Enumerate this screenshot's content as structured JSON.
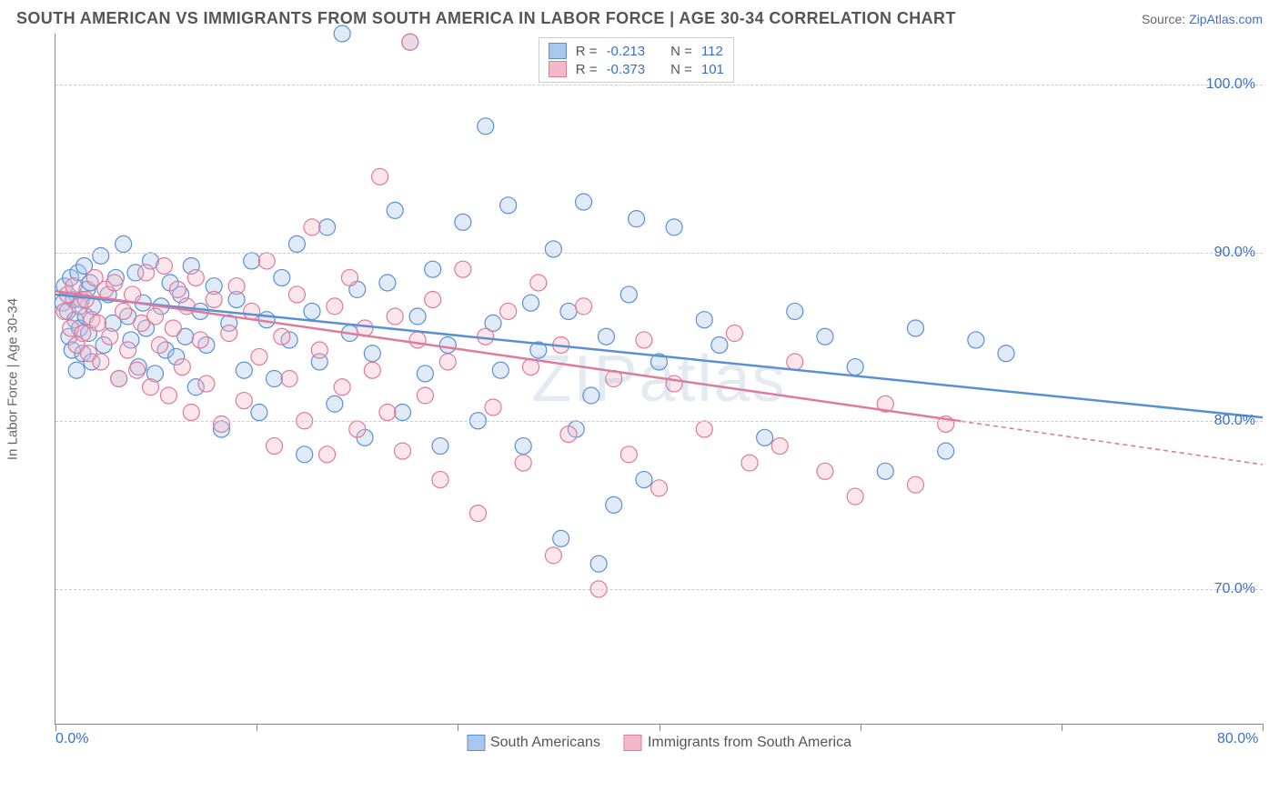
{
  "header": {
    "title": "SOUTH AMERICAN VS IMMIGRANTS FROM SOUTH AMERICA IN LABOR FORCE | AGE 30-34 CORRELATION CHART",
    "source_label": "Source: ",
    "source_value": "ZipAtlas.com"
  },
  "chart": {
    "type": "scatter",
    "y_axis_label": "In Labor Force | Age 30-34",
    "watermark": "ZIPatlas",
    "xlim": [
      0,
      80
    ],
    "ylim": [
      62,
      103
    ],
    "x_ticks": [
      0,
      13.33,
      26.66,
      40,
      53.33,
      66.66,
      80
    ],
    "x_tick_labels": {
      "0": "0.0%",
      "80": "80.0%"
    },
    "y_gridlines": [
      70,
      80,
      90,
      100
    ],
    "y_tick_labels": {
      "70": "70.0%",
      "80": "80.0%",
      "90": "90.0%",
      "100": "100.0%"
    },
    "x_tick_visible_labels": [
      0,
      80
    ],
    "grid_color": "#cccccc",
    "axis_color": "#888888",
    "background_color": "#ffffff",
    "marker_radius": 9,
    "marker_fill_opacity": 0.35,
    "trend_line_width": 2.5,
    "series": [
      {
        "id": "south_americans",
        "label": "South Americans",
        "fill": "#a9c6ec",
        "stroke": "#5a8fd6",
        "legend_fill": "#a9c6ec",
        "legend_stroke": "#5a8fd6",
        "R_label": "R = ",
        "R": "-0.213",
        "N_label": "N = ",
        "N": "112",
        "trend": {
          "x1": 0,
          "y1": 87.5,
          "x2": 80,
          "y2": 80.2,
          "solid_to_x": 80
        },
        "points": [
          [
            0.5,
            87
          ],
          [
            0.6,
            88
          ],
          [
            0.8,
            86.5
          ],
          [
            0.9,
            85
          ],
          [
            1.0,
            88.5
          ],
          [
            1.1,
            84.2
          ],
          [
            1.2,
            87.2
          ],
          [
            1.3,
            86
          ],
          [
            1.4,
            83
          ],
          [
            1.5,
            88.8
          ],
          [
            1.6,
            85.5
          ],
          [
            1.7,
            87.2
          ],
          [
            1.8,
            84
          ],
          [
            1.9,
            89.2
          ],
          [
            2.0,
            86.2
          ],
          [
            2.1,
            87.8
          ],
          [
            2.2,
            85.2
          ],
          [
            2.3,
            88.2
          ],
          [
            2.4,
            83.5
          ],
          [
            2.5,
            86.8
          ],
          [
            3,
            89.8
          ],
          [
            3.2,
            84.5
          ],
          [
            3.5,
            87.5
          ],
          [
            3.8,
            85.8
          ],
          [
            4,
            88.5
          ],
          [
            4.2,
            82.5
          ],
          [
            4.5,
            90.5
          ],
          [
            4.8,
            86.2
          ],
          [
            5,
            84.8
          ],
          [
            5.3,
            88.8
          ],
          [
            5.5,
            83.2
          ],
          [
            5.8,
            87
          ],
          [
            6,
            85.5
          ],
          [
            6.3,
            89.5
          ],
          [
            6.6,
            82.8
          ],
          [
            7,
            86.8
          ],
          [
            7.3,
            84.2
          ],
          [
            7.6,
            88.2
          ],
          [
            8,
            83.8
          ],
          [
            8.3,
            87.5
          ],
          [
            8.6,
            85
          ],
          [
            9,
            89.2
          ],
          [
            9.3,
            82
          ],
          [
            9.6,
            86.5
          ],
          [
            10,
            84.5
          ],
          [
            10.5,
            88
          ],
          [
            11,
            79.5
          ],
          [
            11.5,
            85.8
          ],
          [
            12,
            87.2
          ],
          [
            12.5,
            83
          ],
          [
            13,
            89.5
          ],
          [
            13.5,
            80.5
          ],
          [
            14,
            86
          ],
          [
            14.5,
            82.5
          ],
          [
            15,
            88.5
          ],
          [
            15.5,
            84.8
          ],
          [
            16,
            90.5
          ],
          [
            16.5,
            78
          ],
          [
            17,
            86.5
          ],
          [
            17.5,
            83.5
          ],
          [
            18,
            91.5
          ],
          [
            18.5,
            81
          ],
          [
            19,
            103
          ],
          [
            19.5,
            85.2
          ],
          [
            20,
            87.8
          ],
          [
            20.5,
            79
          ],
          [
            21,
            84
          ],
          [
            22,
            88.2
          ],
          [
            22.5,
            92.5
          ],
          [
            23,
            80.5
          ],
          [
            23.5,
            102.5
          ],
          [
            24,
            86.2
          ],
          [
            24.5,
            82.8
          ],
          [
            25,
            89
          ],
          [
            25.5,
            78.5
          ],
          [
            26,
            84.5
          ],
          [
            27,
            91.8
          ],
          [
            28,
            80
          ],
          [
            28.5,
            97.5
          ],
          [
            29,
            85.8
          ],
          [
            29.5,
            83
          ],
          [
            30,
            92.8
          ],
          [
            31,
            78.5
          ],
          [
            31.5,
            87
          ],
          [
            32,
            84.2
          ],
          [
            33,
            90.2
          ],
          [
            33.5,
            73
          ],
          [
            34,
            86.5
          ],
          [
            34.5,
            79.5
          ],
          [
            35,
            93
          ],
          [
            35.5,
            81.5
          ],
          [
            36,
            71.5
          ],
          [
            36.5,
            85
          ],
          [
            37,
            75
          ],
          [
            38,
            87.5
          ],
          [
            38.5,
            92
          ],
          [
            39,
            76.5
          ],
          [
            40,
            83.5
          ],
          [
            41,
            91.5
          ],
          [
            43,
            86
          ],
          [
            44,
            84.5
          ],
          [
            47,
            79
          ],
          [
            49,
            86.5
          ],
          [
            51,
            85
          ],
          [
            53,
            83.2
          ],
          [
            55,
            77
          ],
          [
            57,
            85.5
          ],
          [
            59,
            78.2
          ],
          [
            61,
            84.8
          ],
          [
            63,
            84
          ]
        ]
      },
      {
        "id": "immigrants",
        "label": "Immigrants from South America",
        "fill": "#f5b8c8",
        "stroke": "#e07a98",
        "legend_fill": "#f5b8c8",
        "legend_stroke": "#e07a98",
        "R_label": "R = ",
        "R": "-0.373",
        "N_label": "N = ",
        "N": "101",
        "trend": {
          "x1": 0,
          "y1": 87.7,
          "x2": 80,
          "y2": 77.4,
          "solid_to_x": 60
        },
        "points": [
          [
            0.6,
            86.5
          ],
          [
            0.8,
            87.5
          ],
          [
            1.0,
            85.5
          ],
          [
            1.2,
            88
          ],
          [
            1.4,
            84.5
          ],
          [
            1.6,
            86.8
          ],
          [
            1.8,
            85.2
          ],
          [
            2.0,
            87.2
          ],
          [
            2.2,
            84
          ],
          [
            2.4,
            86
          ],
          [
            2.6,
            88.5
          ],
          [
            2.8,
            85.8
          ],
          [
            3.0,
            83.5
          ],
          [
            3.3,
            87.8
          ],
          [
            3.6,
            85
          ],
          [
            3.9,
            88.2
          ],
          [
            4.2,
            82.5
          ],
          [
            4.5,
            86.5
          ],
          [
            4.8,
            84.2
          ],
          [
            5.1,
            87.5
          ],
          [
            5.4,
            83
          ],
          [
            5.7,
            85.8
          ],
          [
            6.0,
            88.8
          ],
          [
            6.3,
            82
          ],
          [
            6.6,
            86.2
          ],
          [
            6.9,
            84.5
          ],
          [
            7.2,
            89.2
          ],
          [
            7.5,
            81.5
          ],
          [
            7.8,
            85.5
          ],
          [
            8.1,
            87.8
          ],
          [
            8.4,
            83.2
          ],
          [
            8.7,
            86.8
          ],
          [
            9.0,
            80.5
          ],
          [
            9.3,
            88.5
          ],
          [
            9.6,
            84.8
          ],
          [
            10,
            82.2
          ],
          [
            10.5,
            87.2
          ],
          [
            11,
            79.8
          ],
          [
            11.5,
            85.2
          ],
          [
            12,
            88
          ],
          [
            12.5,
            81.2
          ],
          [
            13,
            86.5
          ],
          [
            13.5,
            83.8
          ],
          [
            14,
            89.5
          ],
          [
            14.5,
            78.5
          ],
          [
            15,
            85
          ],
          [
            15.5,
            82.5
          ],
          [
            16,
            87.5
          ],
          [
            16.5,
            80
          ],
          [
            17,
            91.5
          ],
          [
            17.5,
            84.2
          ],
          [
            18,
            78
          ],
          [
            18.5,
            86.8
          ],
          [
            19,
            82
          ],
          [
            19.5,
            88.5
          ],
          [
            20,
            79.5
          ],
          [
            20.5,
            85.5
          ],
          [
            21,
            83
          ],
          [
            21.5,
            94.5
          ],
          [
            22,
            80.5
          ],
          [
            22.5,
            86.2
          ],
          [
            23,
            78.2
          ],
          [
            23.5,
            102.5
          ],
          [
            24,
            84.8
          ],
          [
            24.5,
            81.5
          ],
          [
            25,
            87.2
          ],
          [
            25.5,
            76.5
          ],
          [
            26,
            83.5
          ],
          [
            27,
            89
          ],
          [
            28,
            74.5
          ],
          [
            28.5,
            85
          ],
          [
            29,
            80.8
          ],
          [
            30,
            86.5
          ],
          [
            31,
            77.5
          ],
          [
            31.5,
            83.2
          ],
          [
            32,
            88.2
          ],
          [
            33,
            72
          ],
          [
            33.5,
            84.5
          ],
          [
            34,
            79.2
          ],
          [
            35,
            86.8
          ],
          [
            36,
            70
          ],
          [
            37,
            82.5
          ],
          [
            38,
            78
          ],
          [
            39,
            84.8
          ],
          [
            40,
            76
          ],
          [
            41,
            82.2
          ],
          [
            43,
            79.5
          ],
          [
            45,
            85.2
          ],
          [
            46,
            77.5
          ],
          [
            48,
            78.5
          ],
          [
            49,
            83.5
          ],
          [
            51,
            77
          ],
          [
            53,
            75.5
          ],
          [
            55,
            81
          ],
          [
            57,
            76.2
          ],
          [
            59,
            79.8
          ]
        ]
      }
    ],
    "legend_bottom": [
      {
        "label": "South Americans",
        "fill": "#a9c6ec",
        "stroke": "#5a8fd6"
      },
      {
        "label": "Immigrants from South America",
        "fill": "#f5b8c8",
        "stroke": "#e07a98"
      }
    ]
  }
}
